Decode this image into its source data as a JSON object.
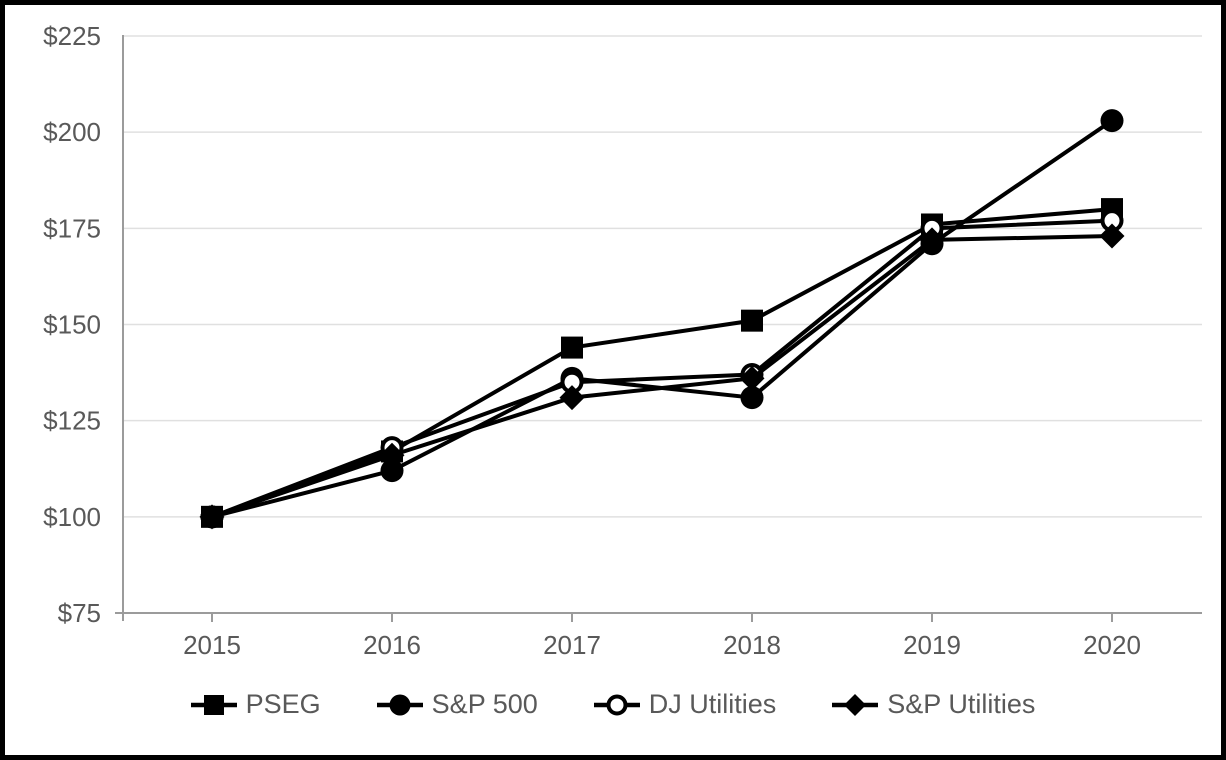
{
  "chart_data": {
    "type": "line",
    "title": "",
    "x_labels": [
      "2015",
      "2016",
      "2017",
      "2018",
      "2019",
      "2020"
    ],
    "y_ticks": [
      75,
      100,
      125,
      150,
      175,
      200,
      225
    ],
    "y_tick_labels": [
      "$75",
      "$100",
      "$125",
      "$150",
      "$175",
      "$200",
      "$225"
    ],
    "ylim": [
      75,
      225
    ],
    "grid": true,
    "legend_position": "bottom",
    "series": [
      {
        "name": "PSEG",
        "marker": "filled-square",
        "values": [
          100,
          117,
          144,
          151,
          176,
          180
        ]
      },
      {
        "name": "S&P 500",
        "marker": "filled-circle",
        "values": [
          100,
          112,
          136,
          131,
          171,
          203
        ]
      },
      {
        "name": "DJ Utilities",
        "marker": "open-circle",
        "values": [
          100,
          118,
          135,
          137,
          175,
          177
        ]
      },
      {
        "name": "S&P Utilities",
        "marker": "filled-diamond",
        "values": [
          100,
          116,
          131,
          136,
          172,
          173
        ]
      }
    ]
  },
  "colors": {
    "series_color": "#000000",
    "axis_color": "#9b9b9b",
    "gridline_color": "#e0e0e0",
    "label_color": "#595959",
    "border_color": "#000000",
    "background": "#ffffff",
    "open_marker_fill": "#ffffff"
  }
}
